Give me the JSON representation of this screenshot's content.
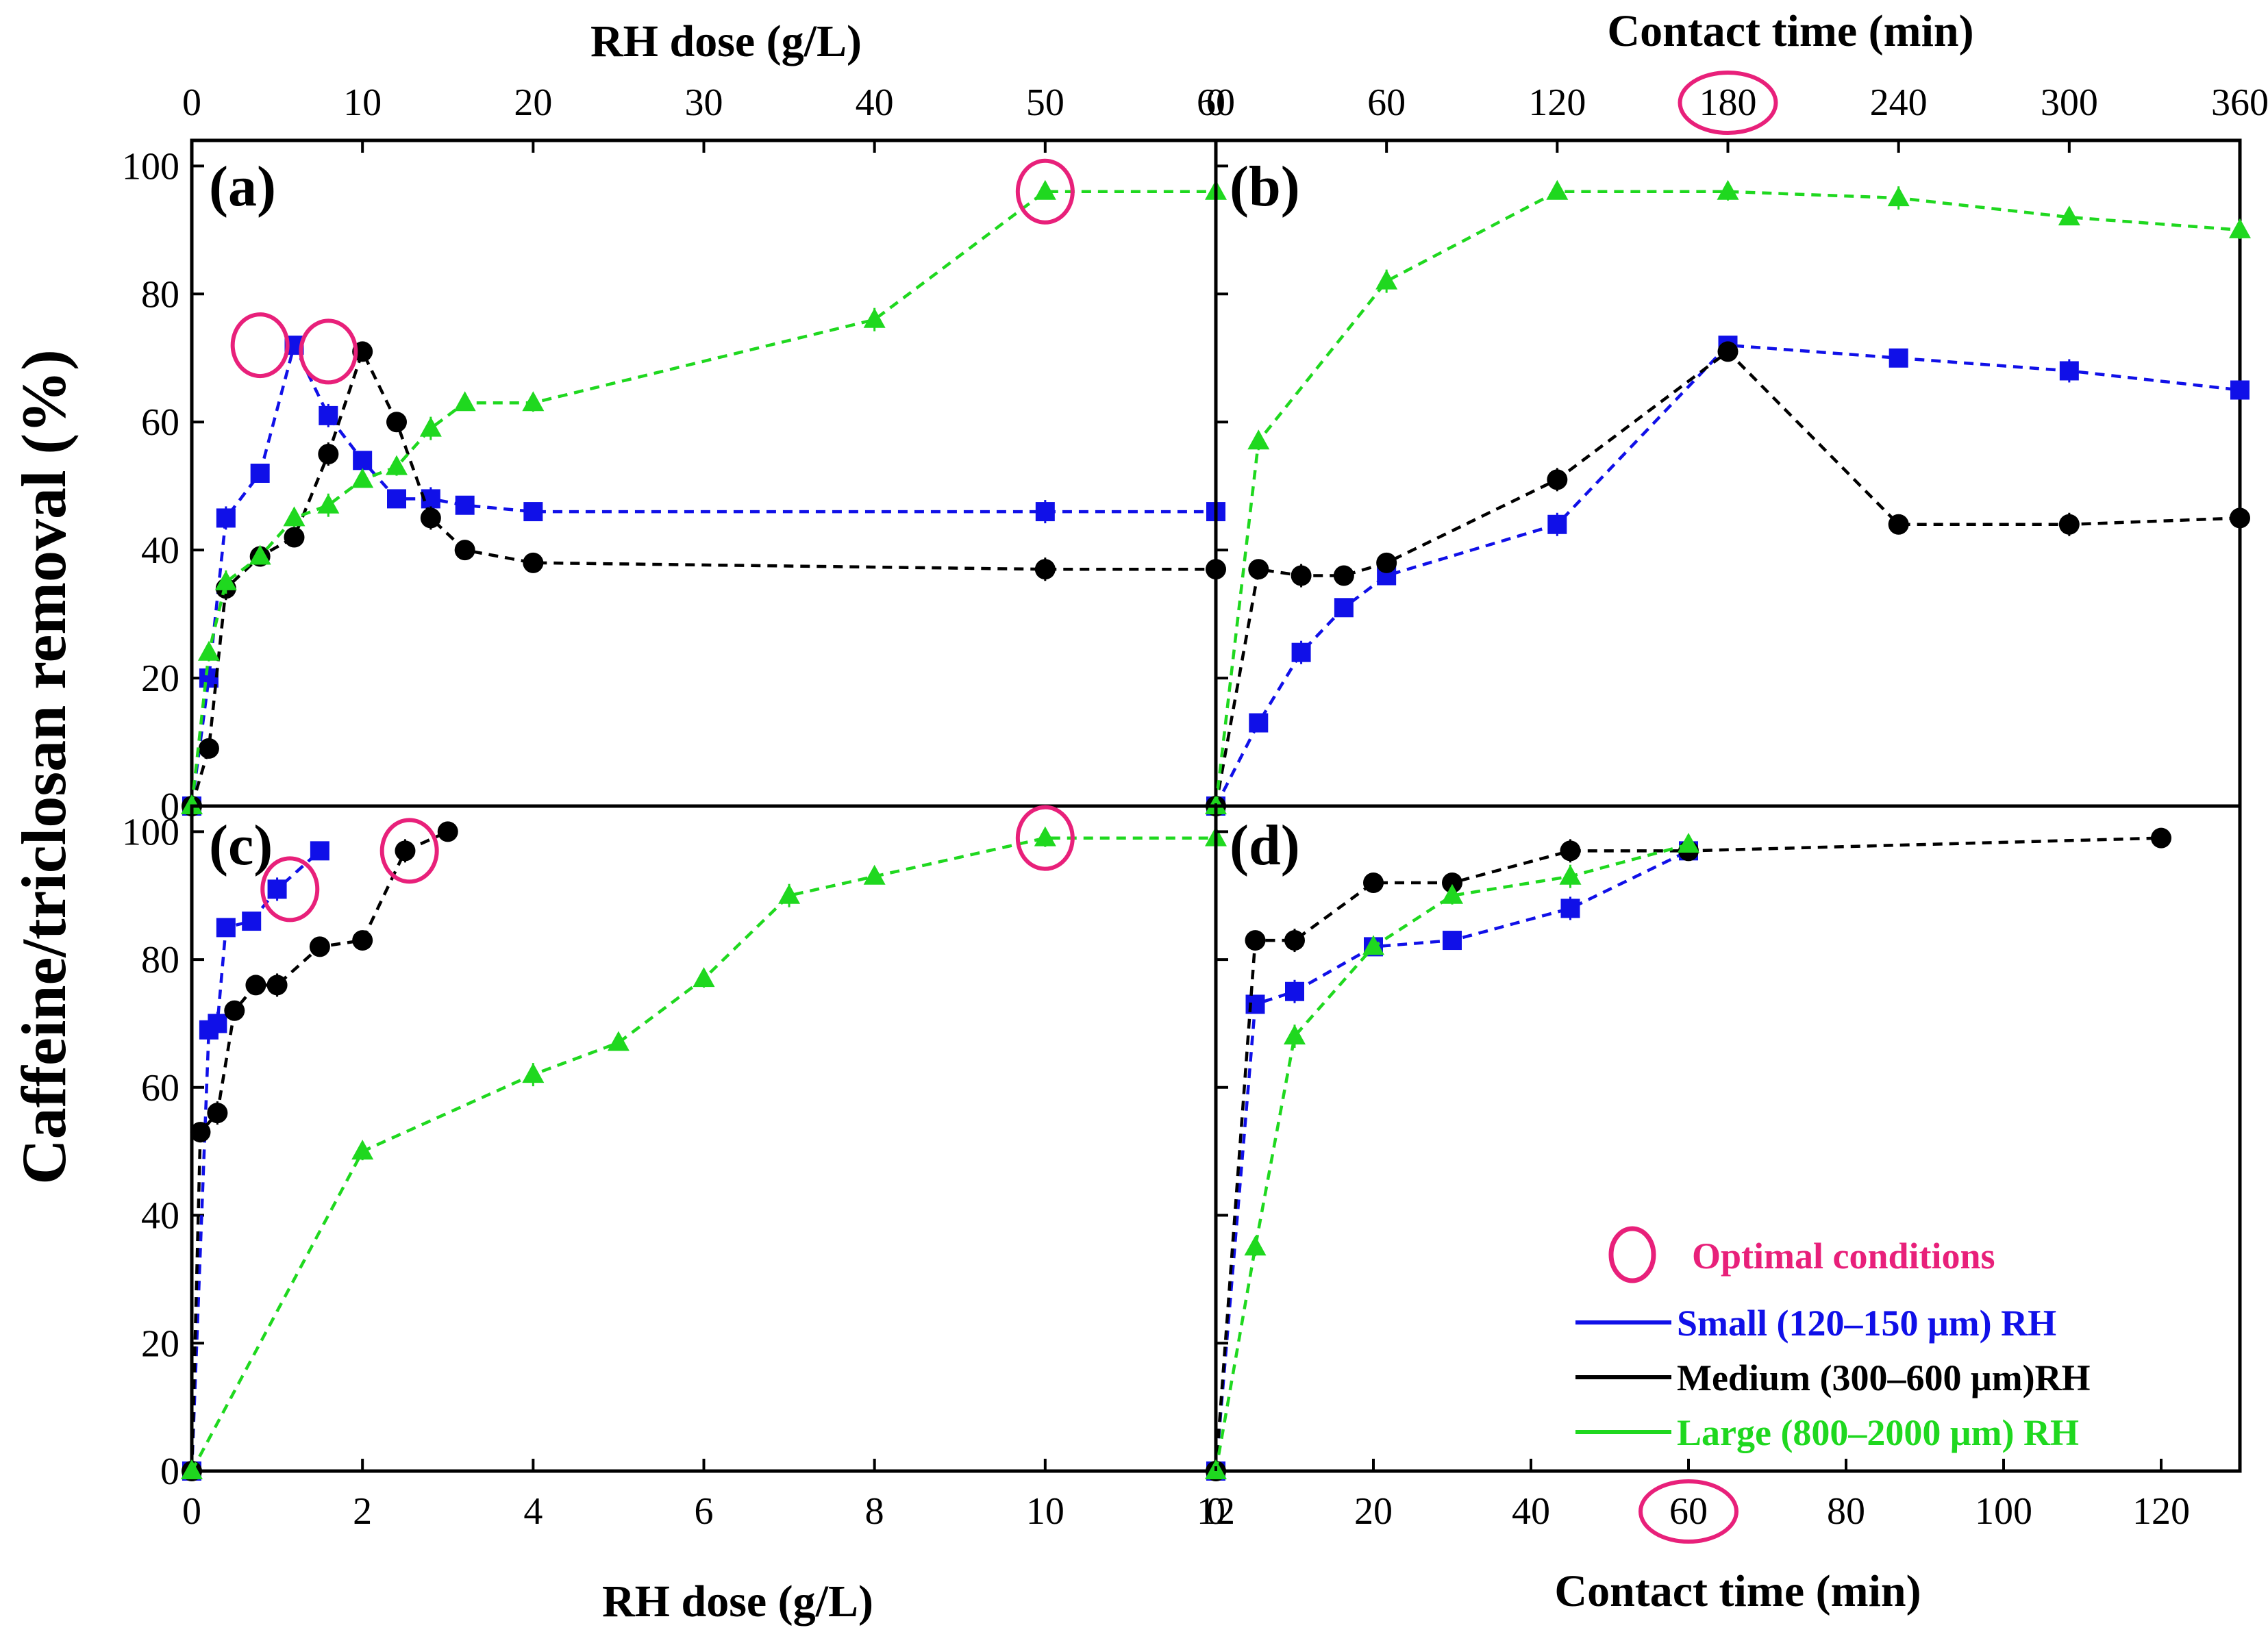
{
  "colors": {
    "small": "#1010e8",
    "medium": "#000000",
    "large": "#1fd81f",
    "optimal": "#e8207a"
  },
  "labels": {
    "y_title": "Caffeine/triclosan removal (%)",
    "top_left_title": "RH dose (g/L)",
    "top_right_title": "Contact time (min)",
    "bottom_left_title": "RH dose (g/L)",
    "bottom_right_title": "Contact time (min)"
  },
  "legend": {
    "optimal": "Optimal conditions",
    "small": "Small (120–150 μm) RH",
    "medium": "Medium (300–600 μm)RH",
    "large": "Large (800–2000 μm) RH"
  },
  "chart_data": [
    {
      "panel": "a",
      "label": "(a)",
      "type": "line",
      "xlabel": "RH dose (g/L)",
      "ylabel": "Caffeine/triclosan removal (%)",
      "xlim": [
        0,
        60
      ],
      "ylim": [
        0,
        100
      ],
      "xticks": [
        0,
        10,
        20,
        30,
        40,
        50,
        60
      ],
      "yticks": [
        0,
        20,
        40,
        60,
        80,
        100
      ],
      "series": [
        {
          "name": "Small (120–150 μm) RH",
          "key": "small",
          "marker": "square",
          "x": [
            0,
            1,
            2,
            4,
            6,
            8,
            10,
            12,
            14,
            16,
            20,
            50,
            60
          ],
          "y": [
            0,
            20,
            45,
            52,
            72,
            61,
            54,
            48,
            48,
            47,
            46,
            46,
            46
          ]
        },
        {
          "name": "Medium (300–600 μm)RH",
          "key": "medium",
          "marker": "circle",
          "x": [
            0,
            1,
            2,
            4,
            6,
            8,
            10,
            12,
            14,
            16,
            20,
            50,
            60
          ],
          "y": [
            0,
            9,
            34,
            39,
            42,
            55,
            71,
            60,
            45,
            40,
            38,
            37,
            37
          ]
        },
        {
          "name": "Large (800–2000 μm) RH",
          "key": "large",
          "marker": "triangle",
          "x": [
            0,
            1,
            2,
            4,
            6,
            8,
            10,
            12,
            14,
            16,
            20,
            40,
            50,
            60
          ],
          "y": [
            0,
            24,
            35,
            39,
            45,
            47,
            51,
            53,
            59,
            63,
            63,
            76,
            96,
            96
          ]
        }
      ],
      "optimal": [
        [
          4,
          72
        ],
        [
          8,
          71
        ],
        [
          50,
          96
        ]
      ]
    },
    {
      "panel": "b",
      "label": "(b)",
      "type": "line",
      "xlabel": "Contact time (min)",
      "ylabel": "Caffeine/triclosan removal (%)",
      "xlim": [
        0,
        360
      ],
      "ylim": [
        0,
        100
      ],
      "xticks": [
        0,
        60,
        120,
        180,
        240,
        300,
        360
      ],
      "yticks": [
        0,
        20,
        40,
        60,
        80,
        100
      ],
      "series": [
        {
          "name": "Small (120–150 μm) RH",
          "key": "small",
          "marker": "square",
          "x": [
            0,
            15,
            30,
            45,
            60,
            120,
            180,
            240,
            300,
            360
          ],
          "y": [
            0,
            13,
            24,
            31,
            36,
            44,
            72,
            70,
            68,
            65
          ]
        },
        {
          "name": "Medium (300–600 μm)RH",
          "key": "medium",
          "marker": "circle",
          "x": [
            0,
            15,
            30,
            45,
            60,
            120,
            180,
            240,
            300,
            360
          ],
          "y": [
            0,
            37,
            36,
            36,
            38,
            51,
            71,
            44,
            44,
            45
          ]
        },
        {
          "name": "Large (800–2000 μm) RH",
          "key": "large",
          "marker": "triangle",
          "x": [
            0,
            15,
            60,
            120,
            180,
            240,
            300,
            360
          ],
          "y": [
            0,
            57,
            82,
            96,
            96,
            95,
            92,
            90
          ]
        }
      ],
      "optimal": [
        [
          180,
          0,
          "tick"
        ]
      ]
    },
    {
      "panel": "c",
      "label": "(c)",
      "type": "line",
      "xlabel": "RH dose (g/L)",
      "ylabel": "Caffeine/triclosan removal (%)",
      "xlim": [
        0,
        12
      ],
      "ylim": [
        0,
        100
      ],
      "xticks": [
        0,
        2,
        4,
        6,
        8,
        10,
        12
      ],
      "yticks": [
        0,
        20,
        40,
        60,
        80,
        100
      ],
      "series": [
        {
          "name": "Small (120–150 μm) RH",
          "key": "small",
          "marker": "square",
          "x": [
            0,
            0.2,
            0.3,
            0.4,
            0.7,
            1.0,
            1.5
          ],
          "y": [
            0,
            69,
            70,
            85,
            86,
            91,
            97
          ]
        },
        {
          "name": "Medium (300–600 μm)RH",
          "key": "medium",
          "marker": "circle",
          "x": [
            0,
            0.1,
            0.3,
            0.5,
            0.75,
            1.0,
            1.5,
            2.0,
            2.5,
            3.0
          ],
          "y": [
            0,
            53,
            56,
            72,
            76,
            76,
            82,
            83,
            97,
            100
          ]
        },
        {
          "name": "Large (800–2000 μm) RH",
          "key": "large",
          "marker": "triangle",
          "x": [
            0,
            2,
            4,
            5,
            6,
            7,
            8,
            10,
            12
          ],
          "y": [
            0,
            50,
            62,
            67,
            77,
            90,
            93,
            99,
            99
          ]
        }
      ],
      "optimal": [
        [
          1.15,
          91
        ],
        [
          2.55,
          97
        ],
        [
          10,
          99
        ]
      ]
    },
    {
      "panel": "d",
      "label": "(d)",
      "type": "line",
      "xlabel": "Contact time (min)",
      "ylabel": "Caffeine/triclosan removal (%)",
      "xlim": [
        0,
        130
      ],
      "ylim": [
        0,
        100
      ],
      "xticks": [
        0,
        20,
        40,
        60,
        80,
        100,
        120
      ],
      "yticks": [
        0,
        20,
        40,
        60,
        80,
        100
      ],
      "series": [
        {
          "name": "Small (120–150 μm) RH",
          "key": "small",
          "marker": "square",
          "x": [
            0,
            5,
            10,
            20,
            30,
            45,
            60
          ],
          "y": [
            0,
            73,
            75,
            82,
            83,
            88,
            97
          ]
        },
        {
          "name": "Medium (300–600 μm)RH",
          "key": "medium",
          "marker": "circle",
          "x": [
            0,
            5,
            10,
            20,
            30,
            45,
            60,
            120
          ],
          "y": [
            0,
            83,
            83,
            92,
            92,
            97,
            97,
            99
          ]
        },
        {
          "name": "Large (800–2000 μm) RH",
          "key": "large",
          "marker": "triangle",
          "x": [
            0,
            5,
            10,
            20,
            30,
            45,
            60
          ],
          "y": [
            0,
            35,
            68,
            82,
            90,
            93,
            98
          ]
        }
      ],
      "optimal": [
        [
          60,
          0,
          "tick"
        ]
      ]
    }
  ]
}
